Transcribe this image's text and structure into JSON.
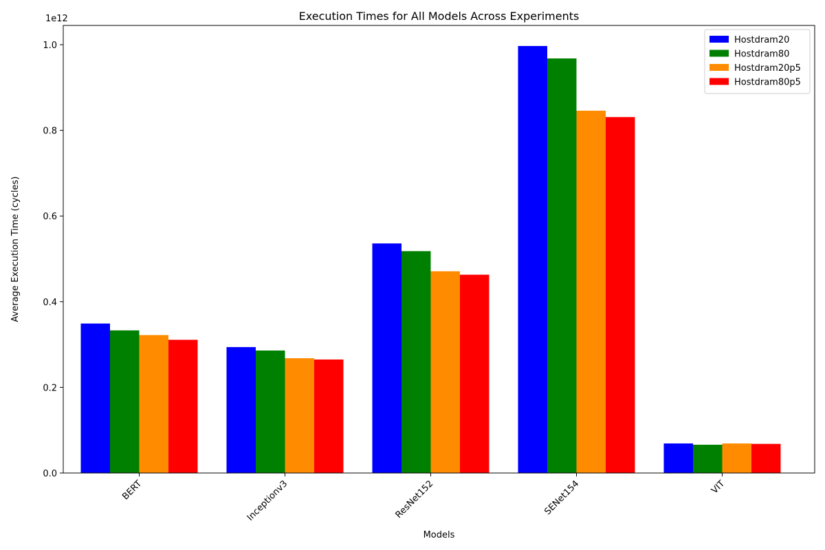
{
  "chart_data": {
    "type": "bar",
    "title": "Execution Times for All Models Across Experiments",
    "xlabel": "Models",
    "ylabel": "Average Execution Time (cycles)",
    "y_scale_label": "1e12",
    "y_scale": 1000000000000.0,
    "ylim": [
      0,
      1.045
    ],
    "yticks": [
      0.0,
      0.2,
      0.4,
      0.6,
      0.8,
      1.0
    ],
    "ytick_labels": [
      "0.0",
      "0.2",
      "0.4",
      "0.6",
      "0.8",
      "1.0"
    ],
    "categories": [
      "BERT",
      "Inceptionv3",
      "ResNet152",
      "SENet154",
      "VIT"
    ],
    "legend_position": "top-right",
    "grid": false,
    "series": [
      {
        "name": "Hostdram20",
        "color": "#0000ff",
        "values": [
          0.349,
          0.294,
          0.536,
          0.997,
          0.069
        ]
      },
      {
        "name": "Hostdram80",
        "color": "#008000",
        "values": [
          0.333,
          0.286,
          0.518,
          0.968,
          0.066
        ]
      },
      {
        "name": "Hostdram20p5",
        "color": "#ff8c00",
        "values": [
          0.322,
          0.268,
          0.471,
          0.846,
          0.069
        ]
      },
      {
        "name": "Hostdram80p5",
        "color": "#ff0000",
        "values": [
          0.311,
          0.265,
          0.463,
          0.831,
          0.068
        ]
      }
    ]
  }
}
